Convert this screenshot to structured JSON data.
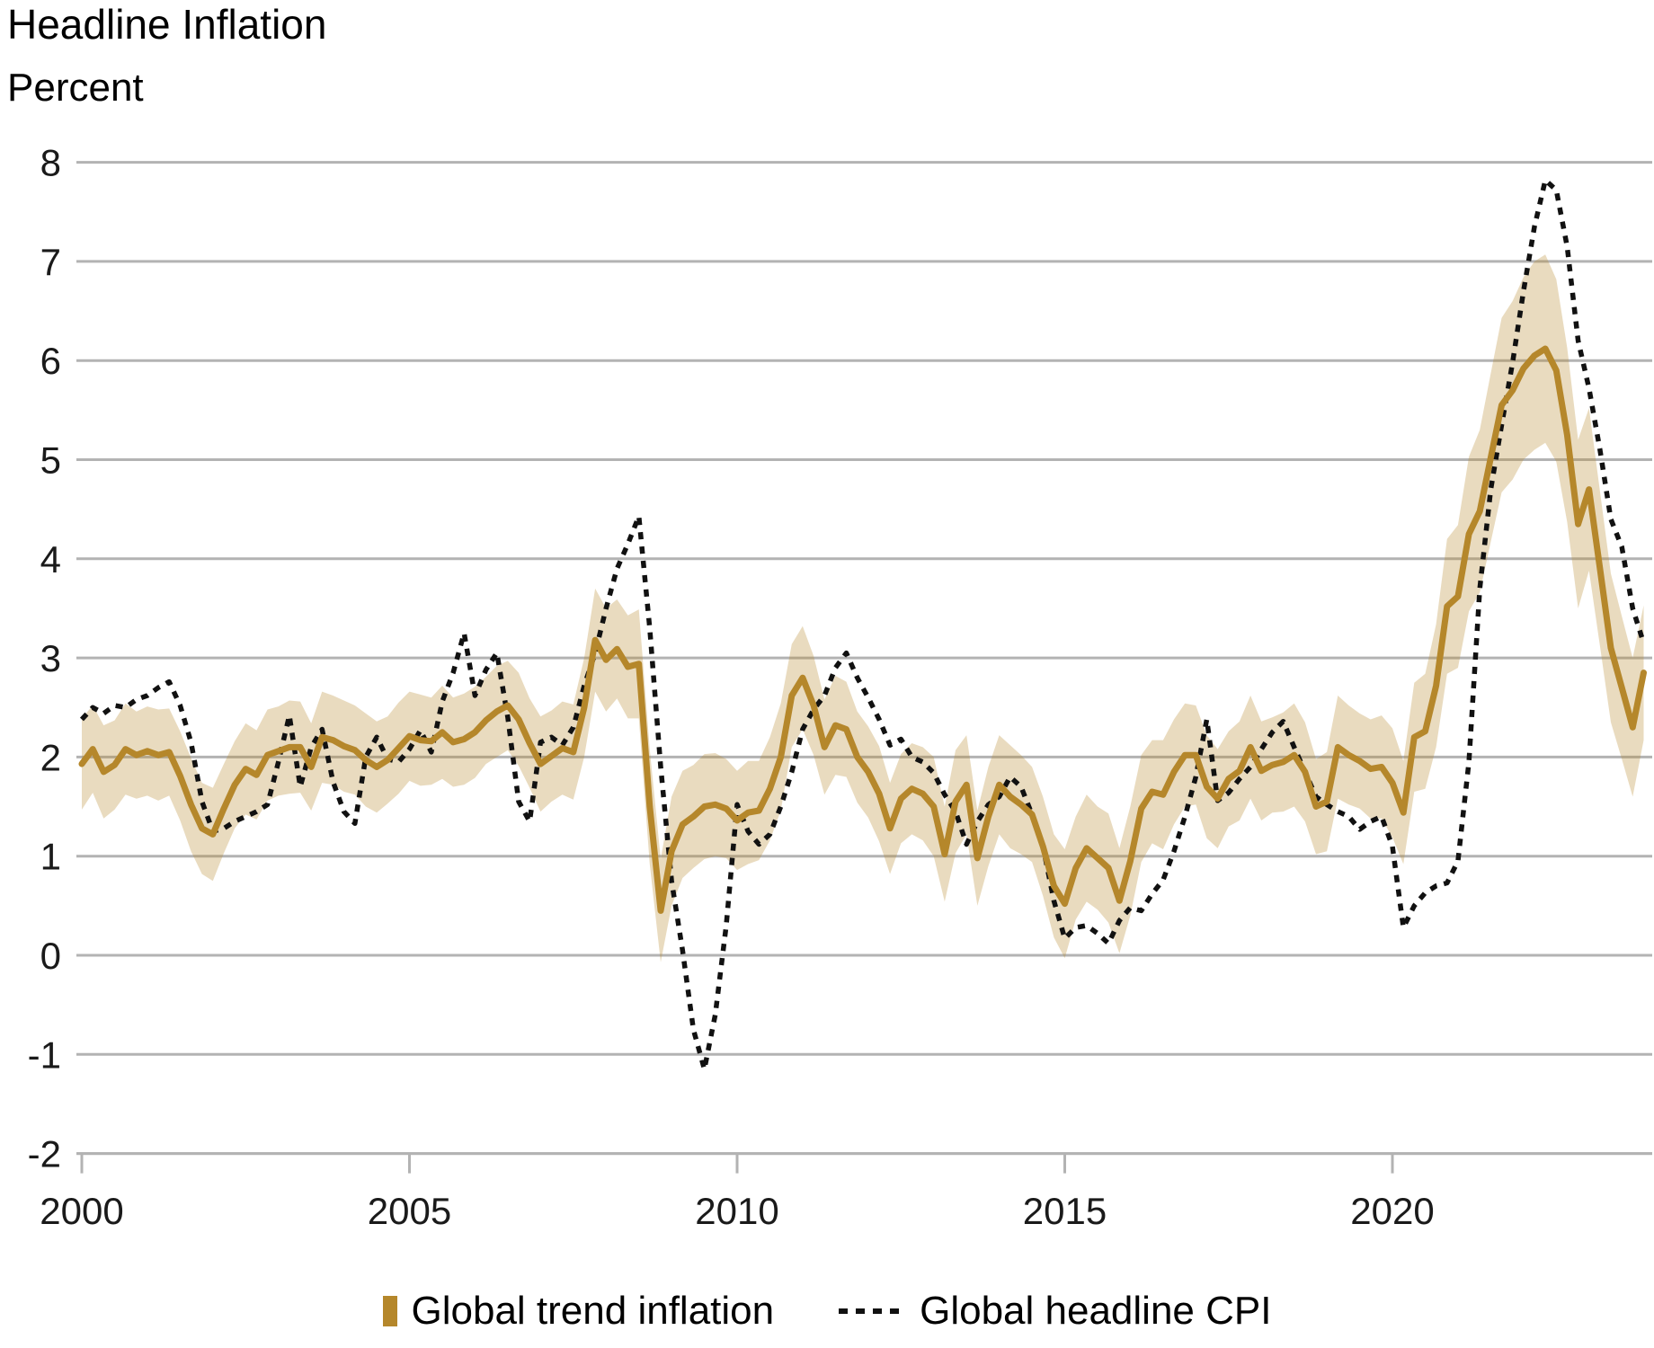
{
  "header": {
    "title": "Headline Inflation",
    "subtitle": "Percent"
  },
  "legend": {
    "trend_label": "Global trend inflation",
    "cpi_label": "Global headline CPI"
  },
  "colors": {
    "trend": "#B5872B",
    "band_fill": "#B5872B",
    "band_opacity": 0.3,
    "cpi": "#111111",
    "gridline": "#b3b3b3",
    "text": "#1a1a1a"
  },
  "chart_data": {
    "type": "line",
    "title": "Headline Inflation",
    "ylabel": "Percent",
    "xlabel": "",
    "ylim": [
      -2,
      8
    ],
    "xlim": [
      2000,
      2024
    ],
    "grid": "horizontal",
    "legend_position": "bottom",
    "y_ticks": [
      8,
      7,
      6,
      5,
      4,
      3,
      2,
      1,
      0,
      -1,
      -2
    ],
    "x_ticks": [
      2000,
      2005,
      2010,
      2015,
      2020
    ],
    "x_start_year": 2000.0,
    "x_step_years": 0.1666667,
    "series": [
      {
        "name": "Global trend inflation",
        "style": "solid",
        "values": [
          1.93,
          2.08,
          1.85,
          1.92,
          2.08,
          2.02,
          2.06,
          2.02,
          2.05,
          1.81,
          1.52,
          1.28,
          1.22,
          1.48,
          1.72,
          1.88,
          1.82,
          2.02,
          2.06,
          2.1,
          2.1,
          1.9,
          2.2,
          2.17,
          2.11,
          2.07,
          1.97,
          1.9,
          1.97,
          2.09,
          2.21,
          2.17,
          2.16,
          2.25,
          2.15,
          2.18,
          2.25,
          2.37,
          2.46,
          2.52,
          2.38,
          2.14,
          1.93,
          2.01,
          2.09,
          2.05,
          2.5,
          3.18,
          2.98,
          3.09,
          2.91,
          2.94,
          1.5,
          0.45,
          1.05,
          1.32,
          1.4,
          1.5,
          1.52,
          1.48,
          1.36,
          1.44,
          1.46,
          1.68,
          2.0,
          2.62,
          2.8,
          2.52,
          2.1,
          2.32,
          2.28,
          2.0,
          1.85,
          1.63,
          1.28,
          1.58,
          1.68,
          1.63,
          1.5,
          1.02,
          1.55,
          1.72,
          0.98,
          1.4,
          1.72,
          1.6,
          1.52,
          1.42,
          1.1,
          0.7,
          0.52,
          0.88,
          1.08,
          0.98,
          0.88,
          0.55,
          0.95,
          1.48,
          1.65,
          1.62,
          1.85,
          2.02,
          2.02,
          1.7,
          1.58,
          1.78,
          1.86,
          2.1,
          1.86,
          1.92,
          1.95,
          2.02,
          1.85,
          1.5,
          1.55,
          2.1,
          2.02,
          1.96,
          1.88,
          1.9,
          1.74,
          1.44,
          2.2,
          2.26,
          2.72,
          3.52,
          3.62,
          4.25,
          4.48,
          5.02,
          5.55,
          5.7,
          5.92,
          6.05,
          6.12,
          5.9,
          5.25,
          4.35,
          4.7,
          3.9,
          3.1,
          2.7,
          2.3,
          2.85
        ],
        "band_halfwidth": [
          0.46,
          0.44,
          0.47,
          0.45,
          0.46,
          0.44,
          0.45,
          0.46,
          0.44,
          0.45,
          0.47,
          0.46,
          0.47,
          0.45,
          0.44,
          0.46,
          0.45,
          0.46,
          0.45,
          0.47,
          0.46,
          0.44,
          0.46,
          0.45,
          0.46,
          0.45,
          0.47,
          0.46,
          0.44,
          0.46,
          0.45,
          0.46,
          0.44,
          0.47,
          0.45,
          0.46,
          0.46,
          0.44,
          0.46,
          0.45,
          0.47,
          0.45,
          0.48,
          0.46,
          0.47,
          0.48,
          0.5,
          0.52,
          0.52,
          0.5,
          0.52,
          0.55,
          0.58,
          0.52,
          0.55,
          0.54,
          0.52,
          0.53,
          0.52,
          0.5,
          0.5,
          0.52,
          0.5,
          0.52,
          0.54,
          0.52,
          0.52,
          0.5,
          0.48,
          0.5,
          0.48,
          0.46,
          0.46,
          0.48,
          0.46,
          0.45,
          0.46,
          0.47,
          0.5,
          0.48,
          0.52,
          0.5,
          0.48,
          0.5,
          0.5,
          0.52,
          0.5,
          0.48,
          0.5,
          0.52,
          0.55,
          0.52,
          0.54,
          0.52,
          0.55,
          0.53,
          0.55,
          0.54,
          0.52,
          0.55,
          0.53,
          0.52,
          0.5,
          0.52,
          0.5,
          0.48,
          0.5,
          0.52,
          0.5,
          0.48,
          0.5,
          0.52,
          0.5,
          0.48,
          0.5,
          0.52,
          0.5,
          0.48,
          0.5,
          0.52,
          0.55,
          0.52,
          0.55,
          0.58,
          0.62,
          0.68,
          0.72,
          0.78,
          0.82,
          0.85,
          0.88,
          0.9,
          0.92,
          0.95,
          0.95,
          0.92,
          0.88,
          0.85,
          0.82,
          0.78,
          0.75,
          0.72,
          0.7,
          0.68
        ]
      },
      {
        "name": "Global headline CPI",
        "style": "dotted",
        "values": [
          2.38,
          2.5,
          2.44,
          2.52,
          2.5,
          2.58,
          2.62,
          2.7,
          2.76,
          2.52,
          2.15,
          1.55,
          1.25,
          1.28,
          1.35,
          1.4,
          1.45,
          1.52,
          1.95,
          2.42,
          1.7,
          2.1,
          2.28,
          1.75,
          1.45,
          1.33,
          2.0,
          2.2,
          1.98,
          1.95,
          2.08,
          2.27,
          2.05,
          2.56,
          2.85,
          3.25,
          2.62,
          2.88,
          3.05,
          2.4,
          1.55,
          1.35,
          2.15,
          2.2,
          2.12,
          2.3,
          2.72,
          3.05,
          3.5,
          3.9,
          4.15,
          4.43,
          3.3,
          1.9,
          0.75,
          0.05,
          -0.75,
          -1.15,
          -0.6,
          0.3,
          1.52,
          1.25,
          1.12,
          1.22,
          1.5,
          1.85,
          2.28,
          2.48,
          2.62,
          2.9,
          3.05,
          2.8,
          2.6,
          2.38,
          2.12,
          2.18,
          2.0,
          1.95,
          1.84,
          1.62,
          1.45,
          1.12,
          1.35,
          1.52,
          1.6,
          1.8,
          1.7,
          1.42,
          1.1,
          0.55,
          0.17,
          0.28,
          0.3,
          0.22,
          0.12,
          0.35,
          0.48,
          0.45,
          0.62,
          0.76,
          1.05,
          1.4,
          1.8,
          2.38,
          1.56,
          1.64,
          1.78,
          1.9,
          2.08,
          2.25,
          2.36,
          2.1,
          1.85,
          1.6,
          1.52,
          1.45,
          1.4,
          1.27,
          1.35,
          1.4,
          1.1,
          0.28,
          0.5,
          0.63,
          0.7,
          0.73,
          0.95,
          1.95,
          3.7,
          4.7,
          5.35,
          5.98,
          6.7,
          7.35,
          7.82,
          7.72,
          7.15,
          6.2,
          5.72,
          5.1,
          4.4,
          4.12,
          3.5,
          3.15
        ]
      }
    ]
  }
}
